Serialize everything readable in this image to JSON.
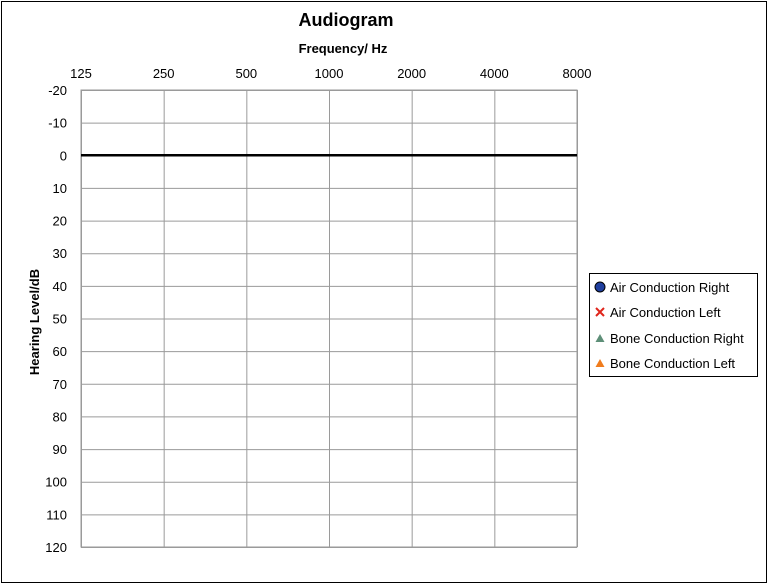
{
  "chart_data": {
    "type": "scatter",
    "title": "Audiogram",
    "xlabel": "Frequency/ Hz",
    "ylabel": "Hearing Level/dB",
    "x_ticks": [
      "125",
      "250",
      "500",
      "1000",
      "2000",
      "4000",
      "8000"
    ],
    "y_ticks": [
      "-20",
      "-10",
      "0",
      "10",
      "20",
      "30",
      "40",
      "50",
      "60",
      "70",
      "80",
      "90",
      "100",
      "110",
      "120"
    ],
    "xscale": "log2",
    "ylim": [
      -20,
      120
    ],
    "y_inverted": true,
    "grid": true,
    "reference_line": {
      "y": 0,
      "color": "#000000"
    },
    "legend_position": "right",
    "series": [
      {
        "name": "Air Conduction Right",
        "marker": "circle",
        "color": "#1f3f9e",
        "values": []
      },
      {
        "name": "Air Conduction Left",
        "marker": "x",
        "color": "#e0251b",
        "values": []
      },
      {
        "name": "Bone Conduction Right",
        "marker": "triangle",
        "color": "#5e8f78",
        "values": []
      },
      {
        "name": "Bone Conduction Left",
        "marker": "triangle",
        "color": "#f07c1d",
        "values": []
      }
    ]
  }
}
